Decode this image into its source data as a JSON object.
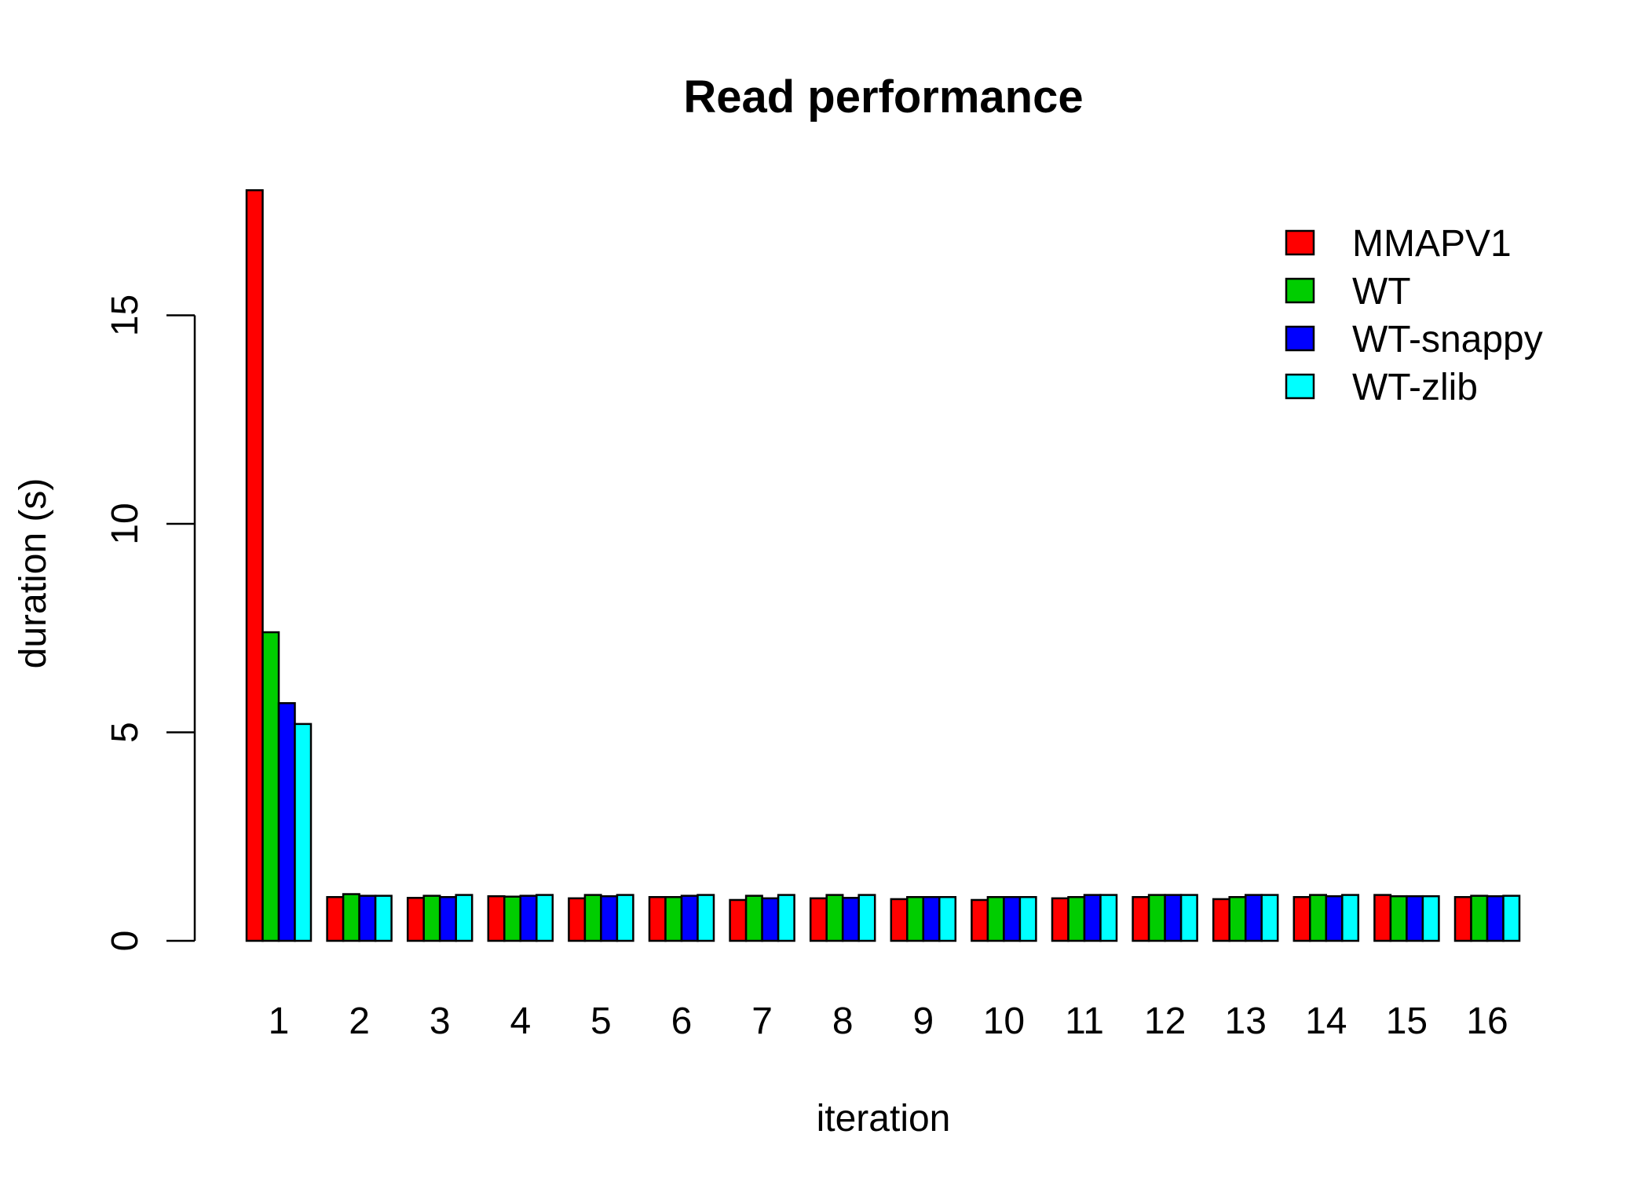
{
  "chart_data": {
    "type": "bar",
    "title": "Read performance",
    "xlabel": "iteration",
    "ylabel": "duration (s)",
    "ylim": [
      0,
      18
    ],
    "yticks": [
      0,
      5,
      10,
      15
    ],
    "grid": false,
    "legend_position": "top-right",
    "categories": [
      "1",
      "2",
      "3",
      "4",
      "5",
      "6",
      "7",
      "8",
      "9",
      "10",
      "11",
      "12",
      "13",
      "14",
      "15",
      "16"
    ],
    "series": [
      {
        "name": "MMAPV1",
        "color": "#FF0000",
        "values": [
          18.0,
          1.05,
          1.03,
          1.07,
          1.02,
          1.05,
          0.98,
          1.02,
          1.0,
          0.98,
          1.02,
          1.05,
          1.0,
          1.05,
          1.1,
          1.05
        ]
      },
      {
        "name": "WT",
        "color": "#00CD00",
        "values": [
          7.4,
          1.12,
          1.08,
          1.06,
          1.1,
          1.05,
          1.08,
          1.1,
          1.05,
          1.05,
          1.05,
          1.1,
          1.05,
          1.1,
          1.07,
          1.08
        ]
      },
      {
        "name": "WT-snappy",
        "color": "#0000FF",
        "values": [
          5.7,
          1.08,
          1.05,
          1.08,
          1.07,
          1.08,
          1.02,
          1.03,
          1.05,
          1.05,
          1.1,
          1.1,
          1.1,
          1.07,
          1.07,
          1.07
        ]
      },
      {
        "name": "WT-zlib",
        "color": "#00FFFF",
        "values": [
          5.2,
          1.08,
          1.1,
          1.1,
          1.1,
          1.1,
          1.1,
          1.1,
          1.05,
          1.05,
          1.1,
          1.1,
          1.1,
          1.1,
          1.07,
          1.08
        ]
      }
    ]
  }
}
